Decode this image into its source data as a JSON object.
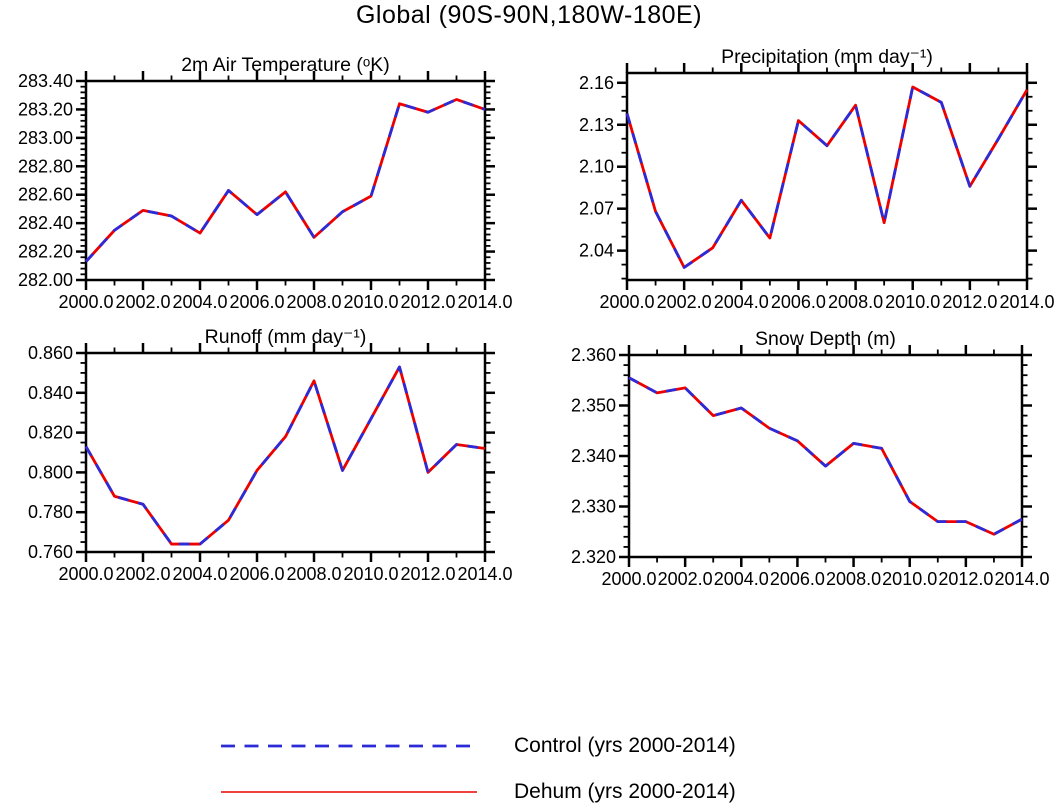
{
  "title": "Global (90S-90N,180W-180E)",
  "legend": {
    "items": [
      {
        "label": "Control (yrs 2000-2014)",
        "color": "#2B2BD8",
        "style": "dashed"
      },
      {
        "label": "Dehum (yrs 2000-2014)",
        "color": "#EC0000",
        "style": "solid"
      }
    ]
  },
  "chart_data": [
    {
      "id": "temperature",
      "type": "line",
      "title": "2m Air Temperature (ᵒK)",
      "x": [
        2000,
        2001,
        2002,
        2003,
        2004,
        2005,
        2006,
        2007,
        2008,
        2009,
        2010,
        2011,
        2012,
        2013,
        2014
      ],
      "xlim": [
        2000,
        2014
      ],
      "xticks_major": [
        2000,
        2002,
        2004,
        2006,
        2008,
        2010,
        2012,
        2014
      ],
      "xticklabels": [
        "2000.0",
        "2002.0",
        "2004.0",
        "2006.0",
        "2008.0",
        "2010.0",
        "2012.0",
        "2014.0"
      ],
      "xminor_step": 1,
      "ylim": [
        282.0,
        283.4
      ],
      "yticks_major": [
        282.0,
        282.2,
        282.4,
        282.6,
        282.8,
        283.0,
        283.2,
        283.4
      ],
      "yticklabels": [
        "282.00",
        "282.20",
        "282.40",
        "282.60",
        "282.80",
        "283.00",
        "283.20",
        "283.40"
      ],
      "yminor_step": 0.04,
      "series": [
        {
          "name": "Control (yrs 2000-2014)",
          "color": "#2B2BD8",
          "dashed": true,
          "values": [
            282.13,
            282.35,
            282.49,
            282.45,
            282.33,
            282.63,
            282.46,
            282.62,
            282.3,
            282.48,
            282.59,
            283.24,
            283.18,
            283.27,
            283.2
          ]
        },
        {
          "name": "Dehum (yrs 2000-2014)",
          "color": "#EC0000",
          "dashed": false,
          "values": [
            282.13,
            282.35,
            282.49,
            282.45,
            282.33,
            282.63,
            282.46,
            282.62,
            282.3,
            282.48,
            282.59,
            283.24,
            283.18,
            283.27,
            283.2
          ]
        }
      ]
    },
    {
      "id": "precipitation",
      "type": "line",
      "title": "Precipitation (mm day⁻¹)",
      "x": [
        2000,
        2001,
        2002,
        2003,
        2004,
        2005,
        2006,
        2007,
        2008,
        2009,
        2010,
        2011,
        2012,
        2013,
        2014
      ],
      "xlim": [
        2000,
        2014
      ],
      "xticks_major": [
        2000,
        2002,
        2004,
        2006,
        2008,
        2010,
        2012,
        2014
      ],
      "xticklabels": [
        "2000.0",
        "2002.0",
        "2004.0",
        "2006.0",
        "2008.0",
        "2010.0",
        "2012.0",
        "2014.0"
      ],
      "xminor_step": 1,
      "ylim": [
        2.019,
        2.167
      ],
      "yticks_major": [
        2.04,
        2.07,
        2.1,
        2.13,
        2.16
      ],
      "yticklabels": [
        "2.04",
        "2.07",
        "2.10",
        "2.13",
        "2.16"
      ],
      "yminor_step": 0.01,
      "series": [
        {
          "name": "Control (yrs 2000-2014)",
          "color": "#2B2BD8",
          "dashed": true,
          "values": [
            2.138,
            2.068,
            2.028,
            2.042,
            2.076,
            2.049,
            2.133,
            2.115,
            2.144,
            2.06,
            2.157,
            2.146,
            2.086,
            2.12,
            2.155
          ]
        },
        {
          "name": "Dehum (yrs 2000-2014)",
          "color": "#EC0000",
          "dashed": false,
          "values": [
            2.138,
            2.068,
            2.028,
            2.042,
            2.076,
            2.049,
            2.133,
            2.115,
            2.144,
            2.06,
            2.157,
            2.146,
            2.086,
            2.12,
            2.155
          ]
        }
      ]
    },
    {
      "id": "runoff",
      "type": "line",
      "title": "Runoff (mm day⁻¹)",
      "x": [
        2000,
        2001,
        2002,
        2003,
        2004,
        2005,
        2006,
        2007,
        2008,
        2009,
        2010,
        2011,
        2012,
        2013,
        2014
      ],
      "xlim": [
        2000,
        2014
      ],
      "xticks_major": [
        2000,
        2002,
        2004,
        2006,
        2008,
        2010,
        2012,
        2014
      ],
      "xticklabels": [
        "2000.0",
        "2002.0",
        "2004.0",
        "2006.0",
        "2008.0",
        "2010.0",
        "2012.0",
        "2014.0"
      ],
      "xminor_step": 1,
      "ylim": [
        0.76,
        0.86
      ],
      "yticks_major": [
        0.76,
        0.78,
        0.8,
        0.82,
        0.84,
        0.86
      ],
      "yticklabels": [
        "0.760",
        "0.780",
        "0.800",
        "0.820",
        "0.840",
        "0.860"
      ],
      "yminor_step": 0.005,
      "series": [
        {
          "name": "Control (yrs 2000-2014)",
          "color": "#2B2BD8",
          "dashed": true,
          "values": [
            0.813,
            0.788,
            0.784,
            0.764,
            0.764,
            0.776,
            0.801,
            0.818,
            0.846,
            0.801,
            0.827,
            0.853,
            0.8,
            0.814,
            0.812
          ]
        },
        {
          "name": "Dehum (yrs 2000-2014)",
          "color": "#EC0000",
          "dashed": false,
          "values": [
            0.813,
            0.788,
            0.784,
            0.764,
            0.764,
            0.776,
            0.801,
            0.818,
            0.846,
            0.801,
            0.827,
            0.853,
            0.8,
            0.814,
            0.812
          ]
        }
      ]
    },
    {
      "id": "snow-depth",
      "type": "line",
      "title": "Snow Depth (m)",
      "x": [
        2000,
        2001,
        2002,
        2003,
        2004,
        2005,
        2006,
        2007,
        2008,
        2009,
        2010,
        2011,
        2012,
        2013,
        2014
      ],
      "xlim": [
        2000,
        2014
      ],
      "xticks_major": [
        2000,
        2002,
        2004,
        2006,
        2008,
        2010,
        2012,
        2014
      ],
      "xticklabels": [
        "2000.0",
        "2002.0",
        "2004.0",
        "2006.0",
        "2008.0",
        "2010.0",
        "2012.0",
        "2014.0"
      ],
      "xminor_step": 1,
      "ylim": [
        2.32,
        2.36
      ],
      "yticks_major": [
        2.32,
        2.33,
        2.34,
        2.35,
        2.36
      ],
      "yticklabels": [
        "2.320",
        "2.330",
        "2.340",
        "2.350",
        "2.360"
      ],
      "yminor_step": 0.002,
      "series": [
        {
          "name": "Control (yrs 2000-2014)",
          "color": "#2B2BD8",
          "dashed": true,
          "values": [
            2.3555,
            2.3525,
            2.3535,
            2.348,
            2.3495,
            2.3455,
            2.343,
            2.338,
            2.3425,
            2.3415,
            2.331,
            2.327,
            2.327,
            2.3245,
            2.3275
          ]
        },
        {
          "name": "Dehum (yrs 2000-2014)",
          "color": "#EC0000",
          "dashed": false,
          "values": [
            2.3555,
            2.3525,
            2.3535,
            2.348,
            2.3495,
            2.3455,
            2.343,
            2.338,
            2.3425,
            2.3415,
            2.331,
            2.327,
            2.327,
            2.3245,
            2.3275
          ]
        }
      ]
    }
  ]
}
